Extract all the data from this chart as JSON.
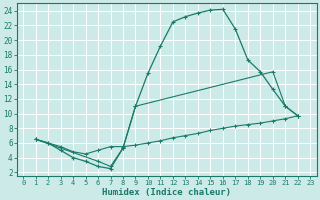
{
  "xlabel": "Humidex (Indice chaleur)",
  "bg_color": "#cceae7",
  "grid_color": "#ffffff",
  "line_color": "#1a7a6a",
  "xlim": [
    -0.5,
    23.5
  ],
  "ylim": [
    1.5,
    25.0
  ],
  "xticks": [
    0,
    1,
    2,
    3,
    4,
    5,
    6,
    7,
    8,
    9,
    10,
    11,
    12,
    13,
    14,
    15,
    16,
    17,
    18,
    19,
    20,
    21,
    22,
    23
  ],
  "yticks": [
    2,
    4,
    6,
    8,
    10,
    12,
    14,
    16,
    18,
    20,
    22,
    24
  ],
  "line1_x": [
    1,
    2,
    3,
    4,
    5,
    6,
    7,
    8,
    9,
    10,
    11,
    12,
    13,
    14,
    15,
    16,
    17,
    18,
    19,
    20,
    21,
    22
  ],
  "line1_y": [
    6.5,
    6.0,
    5.0,
    4.0,
    3.5,
    2.8,
    2.5,
    5.3,
    11.0,
    15.5,
    19.2,
    22.5,
    23.2,
    23.7,
    24.1,
    24.2,
    21.5,
    17.3,
    15.7,
    13.3,
    11.0,
    9.7
  ],
  "line2_x": [
    1,
    2,
    3,
    4,
    5,
    6,
    7,
    8,
    9,
    10,
    11,
    12,
    13,
    14,
    15,
    16,
    17,
    18,
    19,
    20,
    21,
    22
  ],
  "line2_y": [
    6.5,
    6.0,
    5.5,
    4.8,
    4.5,
    5.0,
    5.5,
    5.5,
    5.7,
    6.0,
    6.3,
    6.7,
    7.0,
    7.3,
    7.7,
    8.0,
    8.3,
    8.5,
    8.7,
    9.0,
    9.3,
    9.7
  ],
  "line3_x": [
    1,
    6,
    7,
    8,
    9,
    20,
    21,
    22
  ],
  "line3_y": [
    6.5,
    3.5,
    2.8,
    5.3,
    11.0,
    15.7,
    11.0,
    9.7
  ]
}
